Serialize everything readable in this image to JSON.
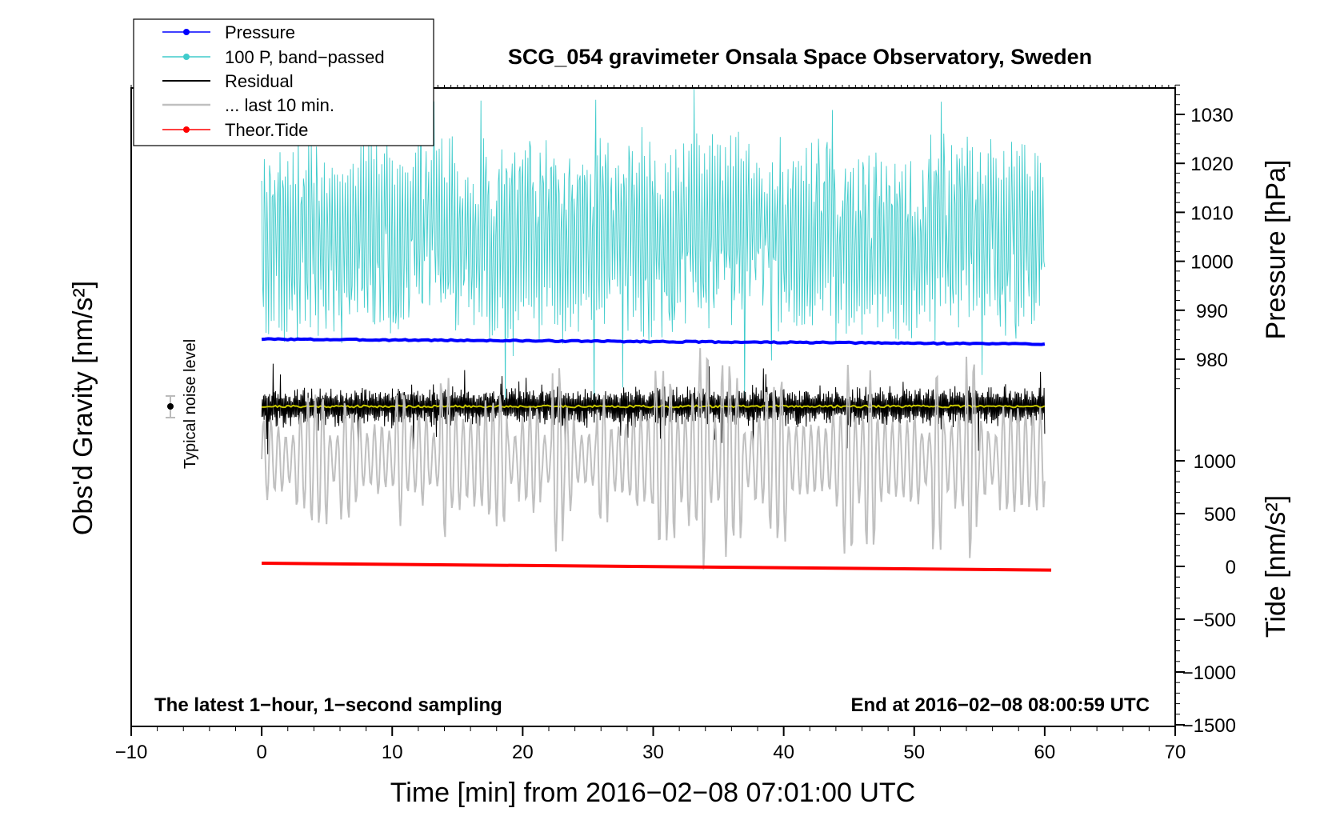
{
  "chart_data": {
    "type": "line",
    "title": "SCG_054 gravimeter Onsala Space Observatory, Sweden",
    "xlabel": "Time [min] from 2016−02−08 07:01:00 UTC",
    "ylabel_left": "Obs'd Gravity [nm/s²]",
    "ylabel_right_top": "Pressure [hPa]",
    "ylabel_right_bottom": "Tide [nm/s²]",
    "xlim": [
      -10,
      70
    ],
    "x_ticks": [
      -10,
      0,
      10,
      20,
      30,
      40,
      50,
      60,
      70
    ],
    "x_tick_labels": [
      "−10",
      "0",
      "10",
      "20",
      "30",
      "40",
      "50",
      "60",
      "70"
    ],
    "pressure_axis": {
      "ticks": [
        980,
        990,
        1000,
        1010,
        1020,
        1030
      ],
      "tick_labels": [
        "980",
        "990",
        "1000",
        "1010",
        "1020",
        "1030"
      ],
      "range": [
        974,
        1036
      ]
    },
    "tide_axis": {
      "ticks": [
        -1500,
        -1000,
        -500,
        0,
        500,
        1000
      ],
      "tick_labels": [
        "−1500",
        "−1000",
        "−500",
        "0",
        "500",
        "1000"
      ],
      "range": [
        -1500,
        1100
      ]
    },
    "series": [
      {
        "name": "Pressure",
        "color": "#0000ff",
        "axis": "pressure",
        "start": 984.1,
        "end": 983.1
      },
      {
        "name": "100 P, band−passed",
        "color": "#40cccc",
        "axis": "pressure",
        "center": 1005,
        "amplitude": 20
      },
      {
        "name": "Residual",
        "color": "#000000",
        "axis": "gravity",
        "level": 0
      },
      {
        "name": "... last 10 min.",
        "color": "#c0c0c0",
        "axis": "gravity",
        "level": -330
      },
      {
        "name": "Theor.Tide",
        "color": "#ff0000",
        "axis": "tide",
        "start": 30,
        "end": -35
      }
    ],
    "residual_smooth_color": "#c8c800",
    "legend": {
      "position": "top-left",
      "entries": [
        "Pressure",
        "100 P, band−passed",
        "Residual",
        "... last 10 min.",
        "Theor.Tide"
      ]
    },
    "annotations": {
      "noise_label": "Typical noise level",
      "bottom_left": "The latest 1−hour, 1−second sampling",
      "bottom_right": "End at 2016−02−08 08:00:59 UTC"
    }
  }
}
